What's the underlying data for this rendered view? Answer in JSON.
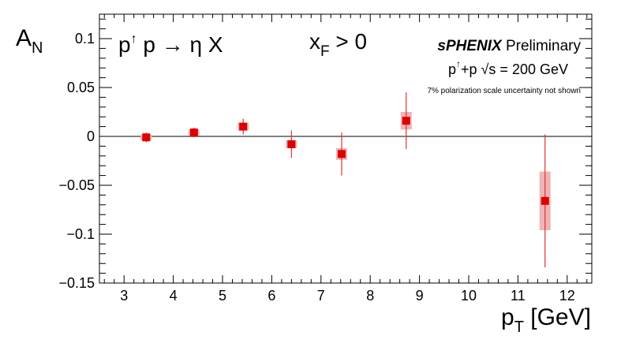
{
  "chart_data": {
    "type": "scatter",
    "x_unit_label": "p",
    "x_unit_sub": "T",
    "x_unit_rest": " [GeV]",
    "y_label_main": "A",
    "y_label_sub": "N",
    "xlim": [
      2.5,
      12.5
    ],
    "ylim": [
      -0.15,
      0.125
    ],
    "x_ticks": [
      3,
      4,
      5,
      6,
      7,
      8,
      9,
      10,
      11,
      12
    ],
    "y_ticks": [
      0.1,
      0.05,
      0,
      -0.05,
      -0.1,
      -0.15
    ],
    "y_tick_labels": [
      "0.1",
      "0.05",
      "0",
      "−0.05",
      "−0.1",
      "−0.15"
    ],
    "zero_line": true,
    "grid": false,
    "points": [
      {
        "x": 3.45,
        "y": -0.001,
        "stat_err": 0.005,
        "syst_err": 0.003
      },
      {
        "x": 4.42,
        "y": 0.004,
        "stat_err": 0.005,
        "syst_err": 0.003
      },
      {
        "x": 5.42,
        "y": 0.01,
        "stat_err": 0.008,
        "syst_err": 0.004
      },
      {
        "x": 6.4,
        "y": -0.008,
        "stat_err": 0.014,
        "syst_err": 0.004
      },
      {
        "x": 7.42,
        "y": -0.018,
        "stat_err": 0.022,
        "syst_err": 0.006
      },
      {
        "x": 8.73,
        "y": 0.016,
        "stat_err": 0.029,
        "syst_err": 0.009
      },
      {
        "x": 11.55,
        "y": -0.066,
        "stat_err": 0.068,
        "syst_err": 0.03
      }
    ],
    "colors": {
      "marker": "#dd0000",
      "stat_bar": "#dd3333",
      "syst_box": "#f0b4b4",
      "axis": "#000000"
    }
  },
  "annotations": {
    "process_p1": "p",
    "process_arrow_up": "↑",
    "process_rest": " p → η X",
    "kinematic_x": "x",
    "kinematic_sub": "F",
    "kinematic_rest": " > 0",
    "experiment_name": "sPHENIX",
    "experiment_status": " Preliminary",
    "collision_p": "p",
    "collision_arrow": "↑",
    "collision_rest": "+p  √s = 200 GeV",
    "note": "7% polarization scale uncertainty not shown"
  }
}
